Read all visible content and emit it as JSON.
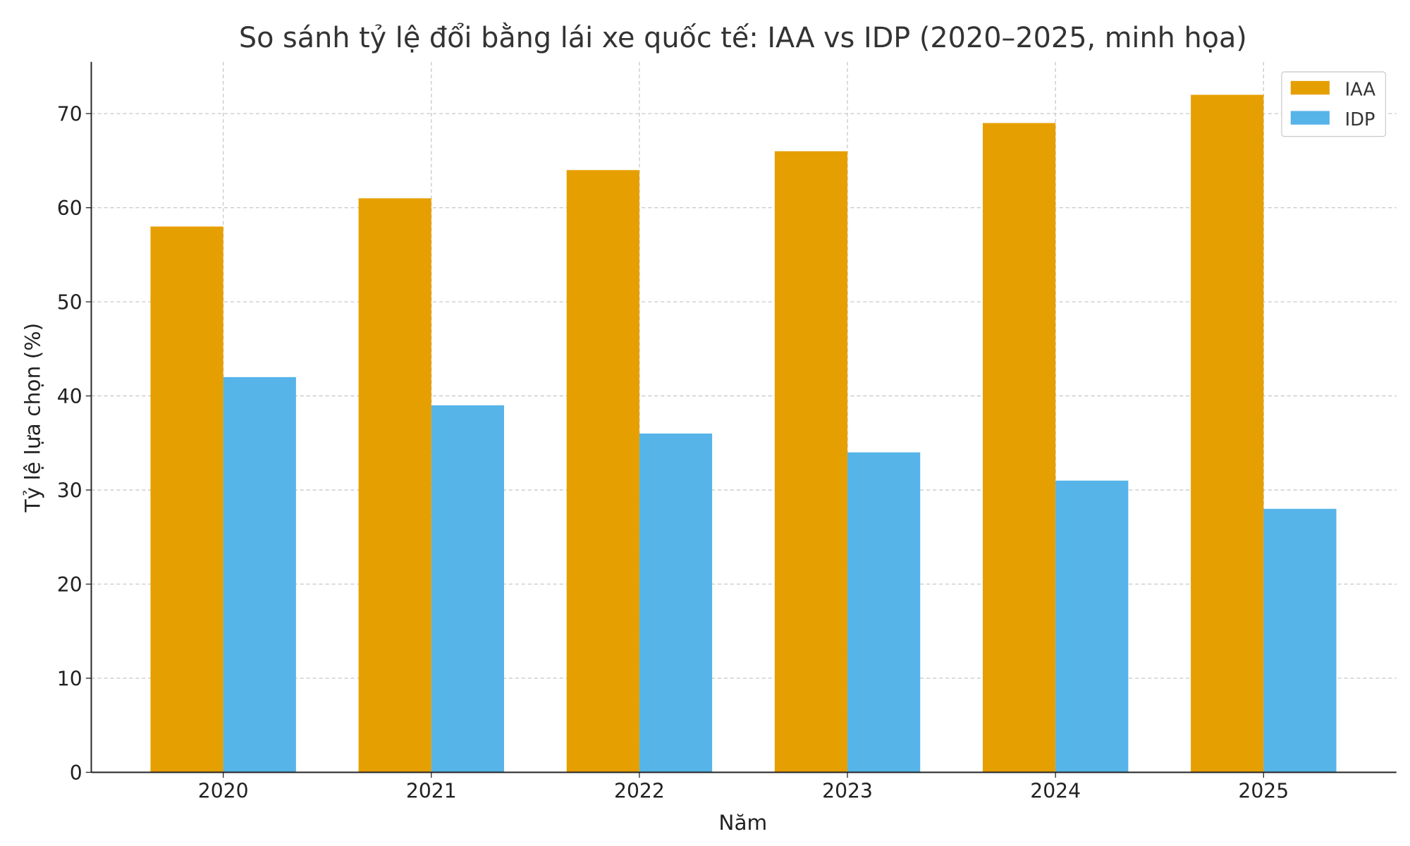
{
  "chart_data": {
    "type": "bar",
    "title": "So sánh tỷ lệ đổi bằng lái xe quốc tế: IAA vs IDP (2020–2025, minh họa)",
    "xlabel": "Năm",
    "ylabel": "Tỷ lệ lựa chọn (%)",
    "categories": [
      "2020",
      "2021",
      "2022",
      "2023",
      "2024",
      "2025"
    ],
    "series": [
      {
        "name": "IAA",
        "color": "#E69F00",
        "values": [
          58,
          61,
          64,
          66,
          69,
          72
        ]
      },
      {
        "name": "IDP",
        "color": "#56B4E9",
        "values": [
          42,
          39,
          36,
          34,
          31,
          28
        ]
      }
    ],
    "ylim": [
      0,
      75.5
    ],
    "yticks": [
      0,
      10,
      20,
      30,
      40,
      50,
      60,
      70
    ],
    "grid": true,
    "legend_position": "top-right"
  }
}
